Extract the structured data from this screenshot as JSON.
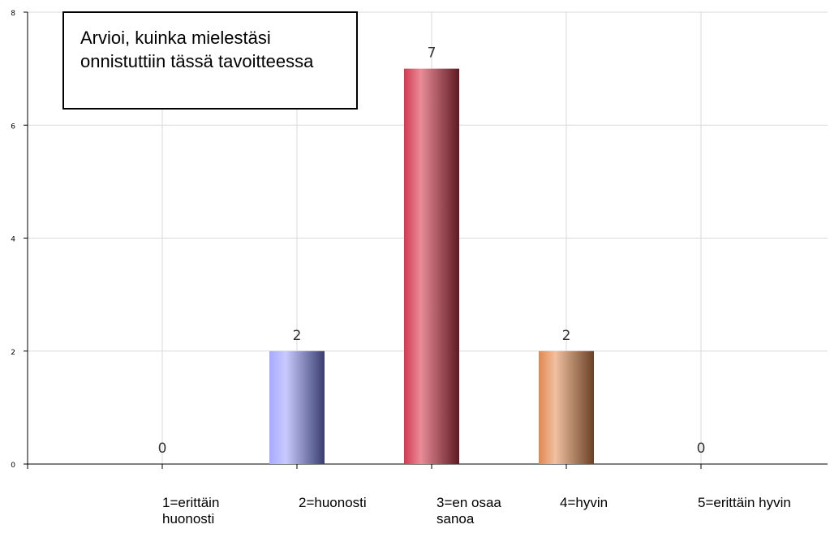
{
  "chart_data": {
    "type": "bar",
    "title": "Arvioi, kuinka mielestäsi onnistuttiin tässä tavoitteessa",
    "categories": [
      "1=erittäin huonosti",
      "2=huonosti",
      "3=en osaa sanoa",
      "4=hyvin",
      "5=erittäin hyvin"
    ],
    "values": [
      0,
      2,
      7,
      2,
      0
    ],
    "data_labels": [
      "0",
      "2",
      "7",
      "2",
      "0"
    ],
    "yticks": [
      "0",
      "2",
      "4",
      "6",
      "8"
    ],
    "ylim": [
      0,
      8
    ],
    "grid": true,
    "legend": "none",
    "bar_colors": [
      [
        "#b0b0b0",
        "#e0e0e0",
        "#606060"
      ],
      [
        "#a8aaff",
        "#c8caff",
        "#3a3d6e"
      ],
      [
        "#d23a4f",
        "#e88c98",
        "#5e1a22"
      ],
      [
        "#e08850",
        "#f0c0a0",
        "#6a4026"
      ],
      [
        "#b0b0b0",
        "#e0e0e0",
        "#606060"
      ]
    ]
  }
}
